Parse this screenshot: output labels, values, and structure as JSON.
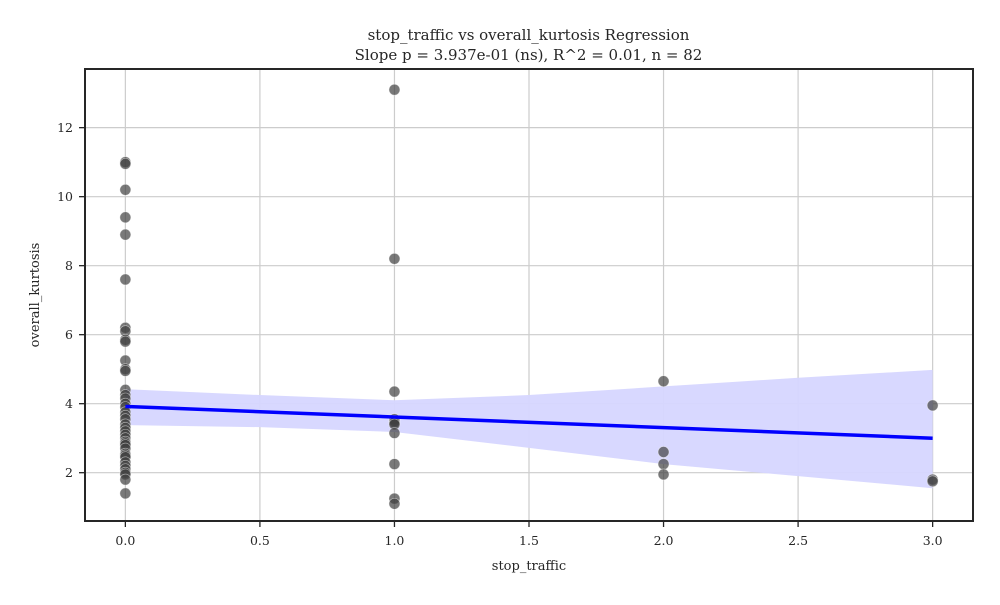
{
  "chart_data": {
    "type": "scatter",
    "title": "stop_traffic vs overall_kurtosis Regression",
    "subtitle": "Slope p = 3.937e-01 (ns), R^2 = 0.01, n = 82",
    "xlabel": "stop_traffic",
    "ylabel": "overall_kurtosis",
    "xlim": [
      -0.15,
      3.15
    ],
    "ylim": [
      0.6,
      13.7
    ],
    "xticks": [
      0.0,
      0.5,
      1.0,
      1.5,
      2.0,
      2.5,
      3.0
    ],
    "xtick_labels": [
      "0.0",
      "0.5",
      "1.0",
      "1.5",
      "2.0",
      "2.5",
      "3.0"
    ],
    "yticks": [
      2,
      4,
      6,
      8,
      10,
      12
    ],
    "ytick_labels": [
      "2",
      "4",
      "6",
      "8",
      "10",
      "12"
    ],
    "grid": true,
    "colors": {
      "points": "#404040",
      "regression_line": "#0000ff",
      "confidence_band": "#d6d6ff",
      "grid": "#cccccc",
      "frame": "#262626"
    },
    "points": [
      [
        0,
        11.0
      ],
      [
        0,
        10.95
      ],
      [
        0,
        10.2
      ],
      [
        0,
        9.4
      ],
      [
        0,
        8.9
      ],
      [
        0,
        7.6
      ],
      [
        0,
        6.2
      ],
      [
        0,
        6.1
      ],
      [
        0,
        5.85
      ],
      [
        0,
        5.8
      ],
      [
        0,
        5.25
      ],
      [
        0,
        5.0
      ],
      [
        0,
        4.95
      ],
      [
        0,
        4.4
      ],
      [
        0,
        4.25
      ],
      [
        0,
        4.15
      ],
      [
        0,
        4.0
      ],
      [
        0,
        3.9
      ],
      [
        0,
        3.75
      ],
      [
        0,
        3.65
      ],
      [
        0,
        3.55
      ],
      [
        0,
        3.4
      ],
      [
        0,
        3.3
      ],
      [
        0,
        3.2
      ],
      [
        0,
        3.1
      ],
      [
        0,
        3.0
      ],
      [
        0,
        2.9
      ],
      [
        0,
        2.85
      ],
      [
        0,
        2.8
      ],
      [
        0,
        2.7
      ],
      [
        0,
        2.55
      ],
      [
        0,
        2.5
      ],
      [
        0,
        2.45
      ],
      [
        0,
        2.3
      ],
      [
        0,
        2.2
      ],
      [
        0,
        2.1
      ],
      [
        0,
        2.0
      ],
      [
        0,
        1.95
      ],
      [
        0,
        1.8
      ],
      [
        0,
        1.4
      ],
      [
        1,
        13.1
      ],
      [
        1,
        8.2
      ],
      [
        1,
        4.35
      ],
      [
        1,
        3.55
      ],
      [
        1,
        3.5
      ],
      [
        1,
        3.45
      ],
      [
        1,
        3.4
      ],
      [
        1,
        3.15
      ],
      [
        1,
        2.25
      ],
      [
        1,
        1.25
      ],
      [
        1,
        1.1
      ],
      [
        2,
        4.65
      ],
      [
        2,
        2.6
      ],
      [
        2,
        2.25
      ],
      [
        2,
        1.95
      ],
      [
        3,
        3.95
      ],
      [
        3,
        1.8
      ],
      [
        3,
        1.75
      ]
    ],
    "regression": {
      "x": [
        0,
        3
      ],
      "y": [
        3.92,
        3.0
      ]
    },
    "confidence_band": {
      "x": [
        0,
        0.5,
        1.0,
        1.5,
        2.0,
        2.5,
        3.0
      ],
      "upper": [
        4.42,
        4.25,
        4.1,
        4.25,
        4.5,
        4.75,
        4.98
      ],
      "lower": [
        3.38,
        3.32,
        3.18,
        2.72,
        2.25,
        1.9,
        1.55
      ]
    }
  }
}
